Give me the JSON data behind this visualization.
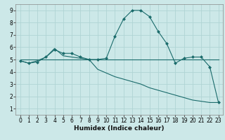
{
  "bg_color": "#cce8e8",
  "grid_color": "#b0d4d4",
  "line_color": "#1a6b6b",
  "marker": "D",
  "marker_size": 2.5,
  "xlabel": "Humidex (Indice chaleur)",
  "xlim": [
    -0.5,
    23.5
  ],
  "ylim": [
    0.5,
    9.5
  ],
  "xticks": [
    0,
    1,
    2,
    3,
    4,
    5,
    6,
    7,
    8,
    9,
    10,
    11,
    12,
    13,
    14,
    15,
    16,
    17,
    18,
    19,
    20,
    21,
    22,
    23
  ],
  "yticks": [
    1,
    2,
    3,
    4,
    5,
    6,
    7,
    8,
    9
  ],
  "series1_x": [
    0,
    1,
    2,
    3,
    4,
    5,
    6,
    7,
    8,
    9,
    10,
    11,
    12,
    13,
    14,
    15,
    16,
    17,
    18,
    19,
    20,
    21,
    22,
    23
  ],
  "series1_y": [
    4.9,
    4.7,
    4.8,
    5.2,
    5.8,
    5.5,
    5.5,
    5.2,
    5.0,
    5.0,
    5.1,
    6.9,
    8.3,
    9.0,
    9.0,
    8.5,
    7.3,
    6.3,
    4.7,
    5.1,
    5.2,
    5.2,
    4.4,
    1.5
  ],
  "series2_x": [
    0,
    23
  ],
  "series2_y": [
    5.0,
    5.0
  ],
  "series3_x": [
    0,
    1,
    2,
    3,
    4,
    5,
    6,
    7,
    8,
    9,
    10,
    11,
    12,
    13,
    14,
    15,
    16,
    17,
    18,
    19,
    20,
    21,
    22,
    23
  ],
  "series3_y": [
    4.9,
    4.7,
    4.9,
    5.2,
    5.9,
    5.3,
    5.2,
    5.1,
    5.0,
    4.2,
    3.9,
    3.6,
    3.4,
    3.2,
    3.0,
    2.7,
    2.5,
    2.3,
    2.1,
    1.9,
    1.7,
    1.6,
    1.5,
    1.5
  ]
}
